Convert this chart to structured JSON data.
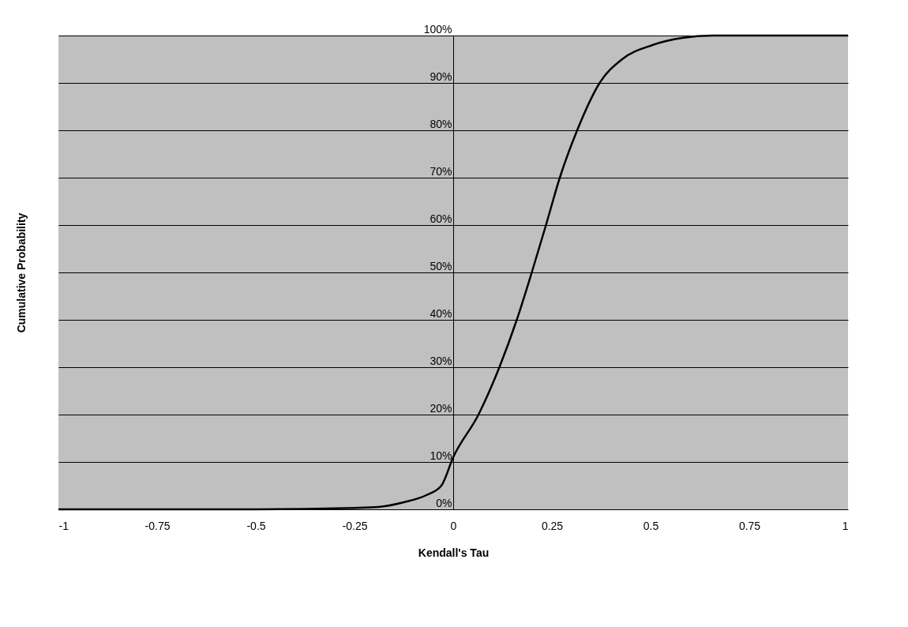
{
  "chart_data": {
    "type": "line",
    "xlabel": "Kendall's Tau",
    "ylabel": "Cumulative Probability",
    "x": [
      -1,
      -0.5,
      -0.25,
      -0.19,
      -0.125,
      -0.068,
      -0.03,
      0,
      0.064,
      0.117,
      0.161,
      0.199,
      0.235,
      0.27,
      0.314,
      0.371,
      0.428,
      0.505,
      0.58,
      0.657,
      0.8,
      1
    ],
    "series": [
      {
        "color": "#000000",
        "values": [
          0,
          0,
          0.3,
          0.5,
          1.5,
          3,
          5,
          11,
          20,
          30,
          40,
          50,
          60,
          70,
          80,
          90,
          95,
          98,
          99.5,
          100,
          100,
          100
        ]
      }
    ],
    "xlim": [
      -1,
      1
    ],
    "xticks": [
      -1,
      -0.75,
      -0.5,
      -0.25,
      0,
      0.25,
      0.5,
      0.75,
      1
    ],
    "ylim": [
      0,
      100
    ],
    "yticks": [
      {
        "value": 0,
        "label": "0%"
      },
      {
        "value": 10,
        "label": "10%"
      },
      {
        "value": 20,
        "label": "20%"
      },
      {
        "value": 30,
        "label": "30%"
      },
      {
        "value": 40,
        "label": "40%"
      },
      {
        "value": 50,
        "label": "50%"
      },
      {
        "value": 60,
        "label": "60%"
      },
      {
        "value": 70,
        "label": "70%"
      },
      {
        "value": 80,
        "label": "80%"
      },
      {
        "value": 90,
        "label": "90%"
      },
      {
        "value": 100,
        "label": "100%"
      }
    ],
    "grid": "y",
    "marker": "none",
    "line_style": "solid"
  }
}
